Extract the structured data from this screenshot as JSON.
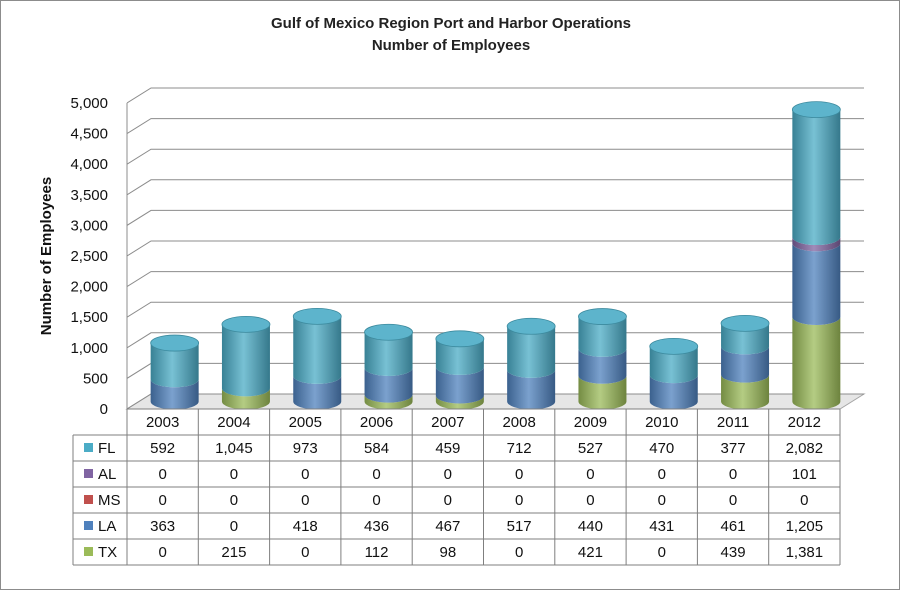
{
  "chart_data": {
    "type": "bar",
    "subtype": "stacked-3d-cylinder",
    "title": "Gulf of Mexico Region Port and Harbor Operations",
    "subtitle": "Number of Employees",
    "ylabel": "Number of Employees",
    "ylim": [
      0,
      5000
    ],
    "yticks": [
      "0",
      "500",
      "1,000",
      "1,500",
      "2,000",
      "2,500",
      "3,000",
      "3,500",
      "4,000",
      "4,500",
      "5,000"
    ],
    "grid": true,
    "legend": "data-table",
    "categories": [
      "2003",
      "2004",
      "2005",
      "2006",
      "2007",
      "2008",
      "2009",
      "2010",
      "2011",
      "2012"
    ],
    "stack_order": [
      "TX",
      "LA",
      "MS",
      "AL",
      "FL"
    ],
    "series": [
      {
        "name": "FL",
        "color": "#4bacc6",
        "values": [
          592,
          1045,
          973,
          584,
          459,
          712,
          527,
          470,
          377,
          2082
        ],
        "labels": [
          "592",
          "1,045",
          "973",
          "584",
          "459",
          "712",
          "527",
          "470",
          "377",
          "2,082"
        ]
      },
      {
        "name": "AL",
        "color": "#8064a2",
        "values": [
          0,
          0,
          0,
          0,
          0,
          0,
          0,
          0,
          0,
          101
        ],
        "labels": [
          "0",
          "0",
          "0",
          "0",
          "0",
          "0",
          "0",
          "0",
          "0",
          "101"
        ]
      },
      {
        "name": "MS",
        "color": "#c0504d",
        "values": [
          0,
          0,
          0,
          0,
          0,
          0,
          0,
          0,
          0,
          0
        ],
        "labels": [
          "0",
          "0",
          "0",
          "0",
          "0",
          "0",
          "0",
          "0",
          "0",
          "0"
        ]
      },
      {
        "name": "LA",
        "color": "#4f81bd",
        "values": [
          363,
          0,
          418,
          436,
          467,
          517,
          440,
          431,
          461,
          1205
        ],
        "labels": [
          "363",
          "0",
          "418",
          "436",
          "467",
          "517",
          "440",
          "431",
          "461",
          "1,205"
        ]
      },
      {
        "name": "TX",
        "color": "#9bbb59",
        "values": [
          0,
          215,
          0,
          112,
          98,
          0,
          421,
          0,
          439,
          1381
        ],
        "labels": [
          "0",
          "215",
          "0",
          "112",
          "98",
          "0",
          "421",
          "0",
          "439",
          "1,381"
        ]
      }
    ]
  }
}
